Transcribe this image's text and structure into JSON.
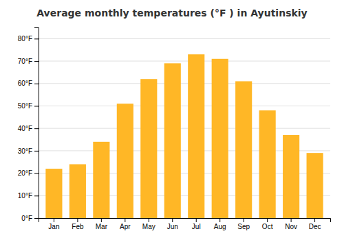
{
  "chart_data": {
    "type": "bar",
    "title": "Average monthly temperatures (°F ) in Ayutinskiy",
    "categories": [
      "Jan",
      "Feb",
      "Mar",
      "Apr",
      "May",
      "Jun",
      "Jul",
      "Aug",
      "Sep",
      "Oct",
      "Nov",
      "Dec"
    ],
    "values": [
      22,
      24,
      34,
      51,
      62,
      69,
      73,
      71,
      61,
      48,
      37,
      29
    ],
    "color": "#FFB726",
    "ylim": [
      0,
      85
    ],
    "yticks": [
      {
        "value": 0,
        "label": "0°F"
      },
      {
        "value": 10,
        "label": "10°F"
      },
      {
        "value": 20,
        "label": "20°F"
      },
      {
        "value": 30,
        "label": "30°F"
      },
      {
        "value": 40,
        "label": "40°F"
      },
      {
        "value": 50,
        "label": "50°F"
      },
      {
        "value": 60,
        "label": "60°F"
      },
      {
        "value": 70,
        "label": "70°F"
      },
      {
        "value": 80,
        "label": "80°F"
      }
    ],
    "grid": true
  }
}
